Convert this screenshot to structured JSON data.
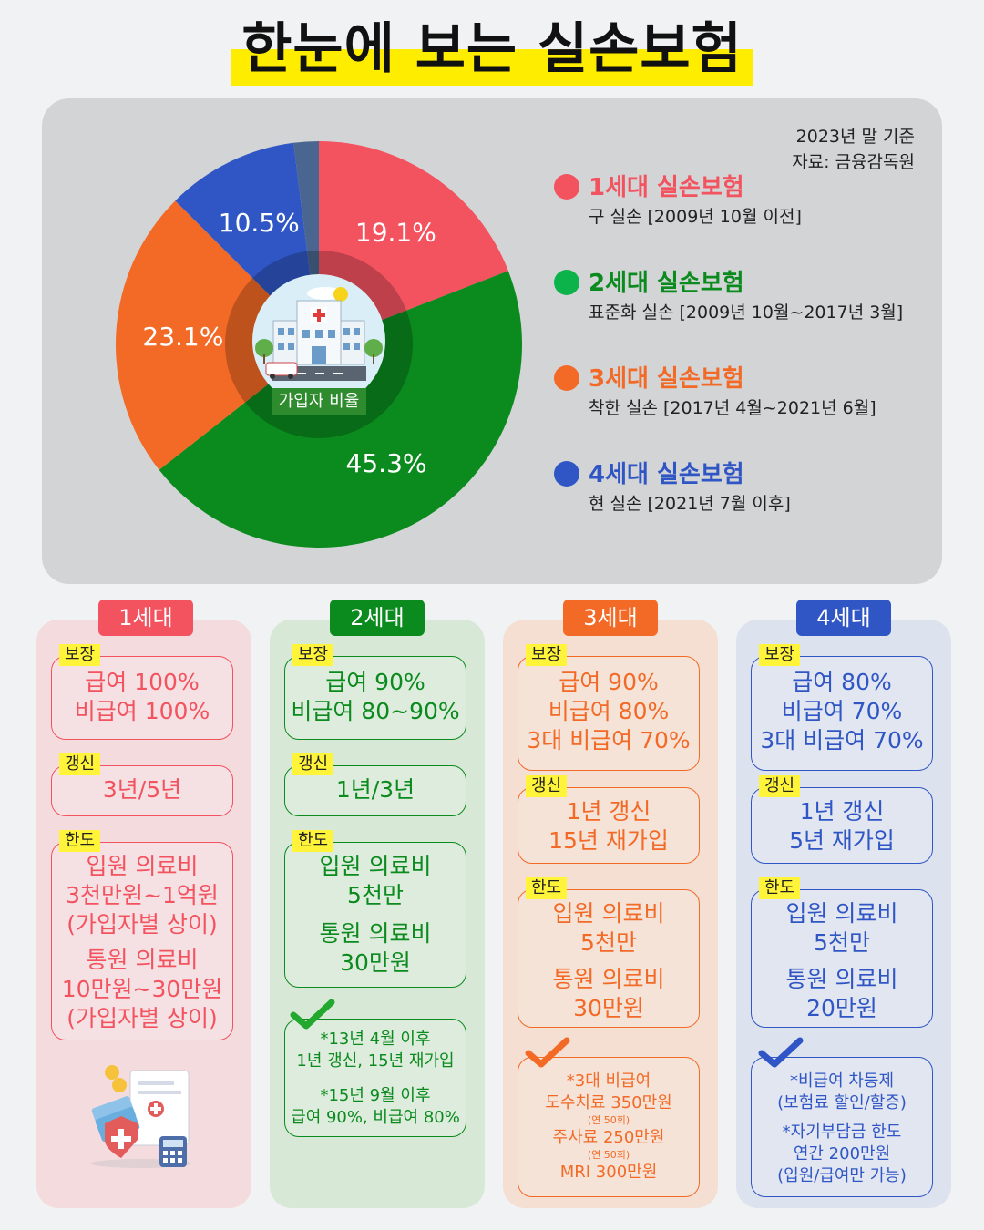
{
  "title": "한눈에 보는 실손보험",
  "source": {
    "line1": "2023년 말 기준",
    "line2": "자료: 금융감독원"
  },
  "colors": {
    "gen1": "#f3525f",
    "gen2": "#0b8a1e",
    "gen3": "#f26a26",
    "gen4": "#2f56c4",
    "other": "#4a6690"
  },
  "chart_data": {
    "type": "pie",
    "center_label": "가입자 비율",
    "slices": [
      {
        "label": "1세대 실손보험",
        "value": 19.1,
        "display": "19.1%"
      },
      {
        "label": "2세대 실손보험",
        "value": 45.3,
        "display": "45.3%"
      },
      {
        "label": "3세대 실손보험",
        "value": 23.1,
        "display": "23.1%"
      },
      {
        "label": "4세대 실손보험",
        "value": 10.5,
        "display": "10.5%"
      },
      {
        "label": "",
        "value": 2.0,
        "display": ""
      }
    ]
  },
  "legend": [
    {
      "name": "1세대 실손보험",
      "desc": "구 실손 [2009년 10월 이전]"
    },
    {
      "name": "2세대 실손보험",
      "desc": "표준화 실손 [2009년 10월~2017년 3월]"
    },
    {
      "name": "3세대 실손보험",
      "desc": "착한 실손 [2017년 4월~2021년 6월]"
    },
    {
      "name": "4세대 실손보험",
      "desc": "현 실손 [2021년 7월 이후]"
    }
  ],
  "tags": {
    "coverage": "보장",
    "renewal": "갱신",
    "limit": "한도"
  },
  "gen1": {
    "header": "1세대",
    "coverage": [
      "급여 100%",
      "비급여 100%"
    ],
    "renewal": [
      "3년/5년"
    ],
    "limit": [
      "입원 의료비",
      "3천만원~1억원",
      "(가입자별 상이)",
      "통원 의료비",
      "10만원~30만원",
      "(가입자별 상이)"
    ]
  },
  "gen2": {
    "header": "2세대",
    "coverage": [
      "급여 90%",
      "비급여 80~90%"
    ],
    "renewal": [
      "1년/3년"
    ],
    "limit": [
      "입원 의료비",
      "5천만",
      "통원 의료비",
      "30만원"
    ],
    "notes": [
      "*13년 4월 이후",
      "1년 갱신, 15년 재가입",
      "*15년 9월 이후",
      "급여 90%, 비급여 80%"
    ]
  },
  "gen3": {
    "header": "3세대",
    "coverage": [
      "급여 90%",
      "비급여 80%",
      "3대 비급여 70%"
    ],
    "renewal": [
      "1년 갱신",
      "15년 재가입"
    ],
    "limit": [
      "입원 의료비",
      "5천만",
      "통원 의료비",
      "30만원"
    ],
    "notes": [
      "*3대 비급여",
      "도수치료 350만원",
      "(연 50회)",
      "주사료 250만원",
      "(연 50회)",
      "MRI 300만원"
    ]
  },
  "gen4": {
    "header": "4세대",
    "coverage": [
      "급여 80%",
      "비급여 70%",
      "3대 비급여 70%"
    ],
    "renewal": [
      "1년 갱신",
      "5년 재가입"
    ],
    "limit": [
      "입원 의료비",
      "5천만",
      "통원 의료비",
      "20만원"
    ],
    "notes": [
      "*비급여 차등제",
      "(보험료 할인/할증)",
      "*자기부담금 한도",
      "연간 200만원",
      "(입원/급여만 가능)"
    ]
  }
}
